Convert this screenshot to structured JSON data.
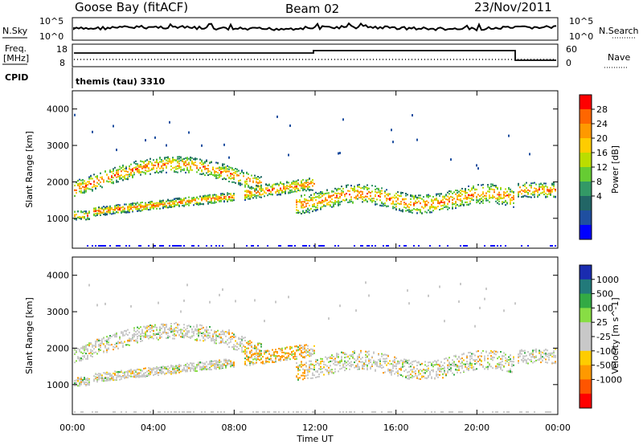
{
  "header": {
    "station": "Goose Bay (fitACF)",
    "beam": "Beam 02",
    "date": "23/Nov/2011"
  },
  "top_panels": {
    "nsky_label": "N.Sky",
    "nsearch_label": "N.Search",
    "freq_label_1": "Freq.",
    "freq_label_2": "[MHz]",
    "nave_label": "Nave",
    "cpid_label": "CPID",
    "cpid_value": "themis (tau) 3310",
    "noise_ticks_left": [
      "10^5",
      "10^0"
    ],
    "noise_ticks_right": [
      "10^5",
      "10^0"
    ],
    "freq_ticks": [
      "18",
      "8"
    ],
    "nave_ticks": [
      "60",
      "0"
    ]
  },
  "chart_data": [
    {
      "type": "heatmap",
      "name": "power",
      "ylabel": "Slant Range [km]",
      "colorbar_label": "Power [dB]",
      "colorbar_ticks": [
        "28",
        "24",
        "20",
        "16",
        "12",
        "8",
        "4"
      ],
      "colorbar_colors": [
        "#ff0000",
        "#ff6600",
        "#ff9900",
        "#ffcc00",
        "#bbdd00",
        "#66cc33",
        "#339966",
        "#226666",
        "#1f4fa0",
        "#0000ff"
      ],
      "ylim": [
        180,
        4500
      ],
      "yticks": [
        "4000",
        "3000",
        "2000",
        "1000"
      ]
    },
    {
      "type": "heatmap",
      "name": "velocity",
      "ylabel": "Slant Range [km]",
      "colorbar_label": "Velocity [m s^-1]",
      "colorbar_ticks": [
        "1000",
        "500",
        "100",
        "25",
        "-25",
        "-100",
        "-500",
        "-1000"
      ],
      "colorbar_colors": [
        "#1a2cb0",
        "#227a7a",
        "#33aa44",
        "#88dd44",
        "#c8c8c8",
        "#c8c8c8",
        "#ffcc00",
        "#ff9900",
        "#ff5500",
        "#ff0000"
      ],
      "ylim": [
        180,
        4500
      ],
      "yticks": [
        "4000",
        "3000",
        "2000",
        "1000"
      ]
    }
  ],
  "xaxis": {
    "label": "Time UT",
    "ticks": [
      "00:00",
      "04:00",
      "08:00",
      "12:00",
      "16:00",
      "20:00",
      "00:00"
    ]
  }
}
